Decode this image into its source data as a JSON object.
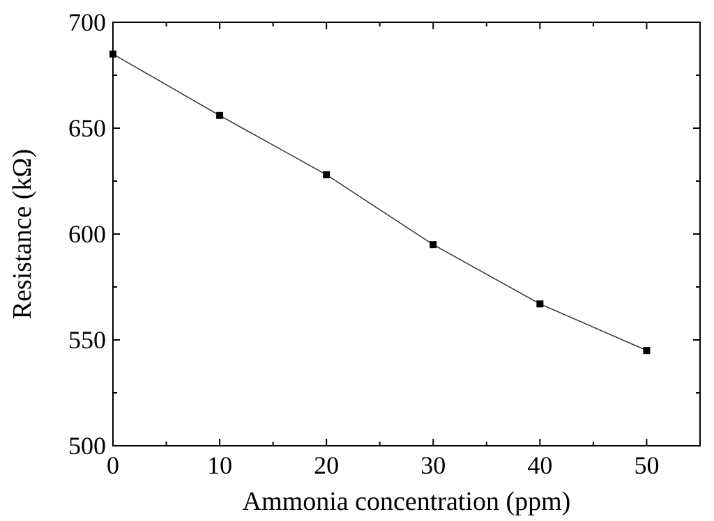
{
  "chart_data": {
    "type": "line",
    "xlabel": "Ammonia concentration (ppm)",
    "ylabel": "Resistance (kΩ)",
    "xlim": [
      0,
      55
    ],
    "ylim": [
      500,
      700
    ],
    "x_ticks": [
      0,
      10,
      20,
      30,
      40,
      50
    ],
    "y_ticks": [
      500,
      550,
      600,
      650,
      700
    ],
    "x_minor_ticks": [
      5,
      15,
      25,
      35,
      45,
      55
    ],
    "y_minor_ticks": [
      525,
      575,
      625,
      675
    ],
    "grid": false,
    "marker": "square",
    "series": [
      {
        "x": [
          0,
          10,
          20,
          30,
          40,
          50
        ],
        "y": [
          685,
          656,
          628,
          595,
          567,
          545
        ]
      }
    ]
  }
}
